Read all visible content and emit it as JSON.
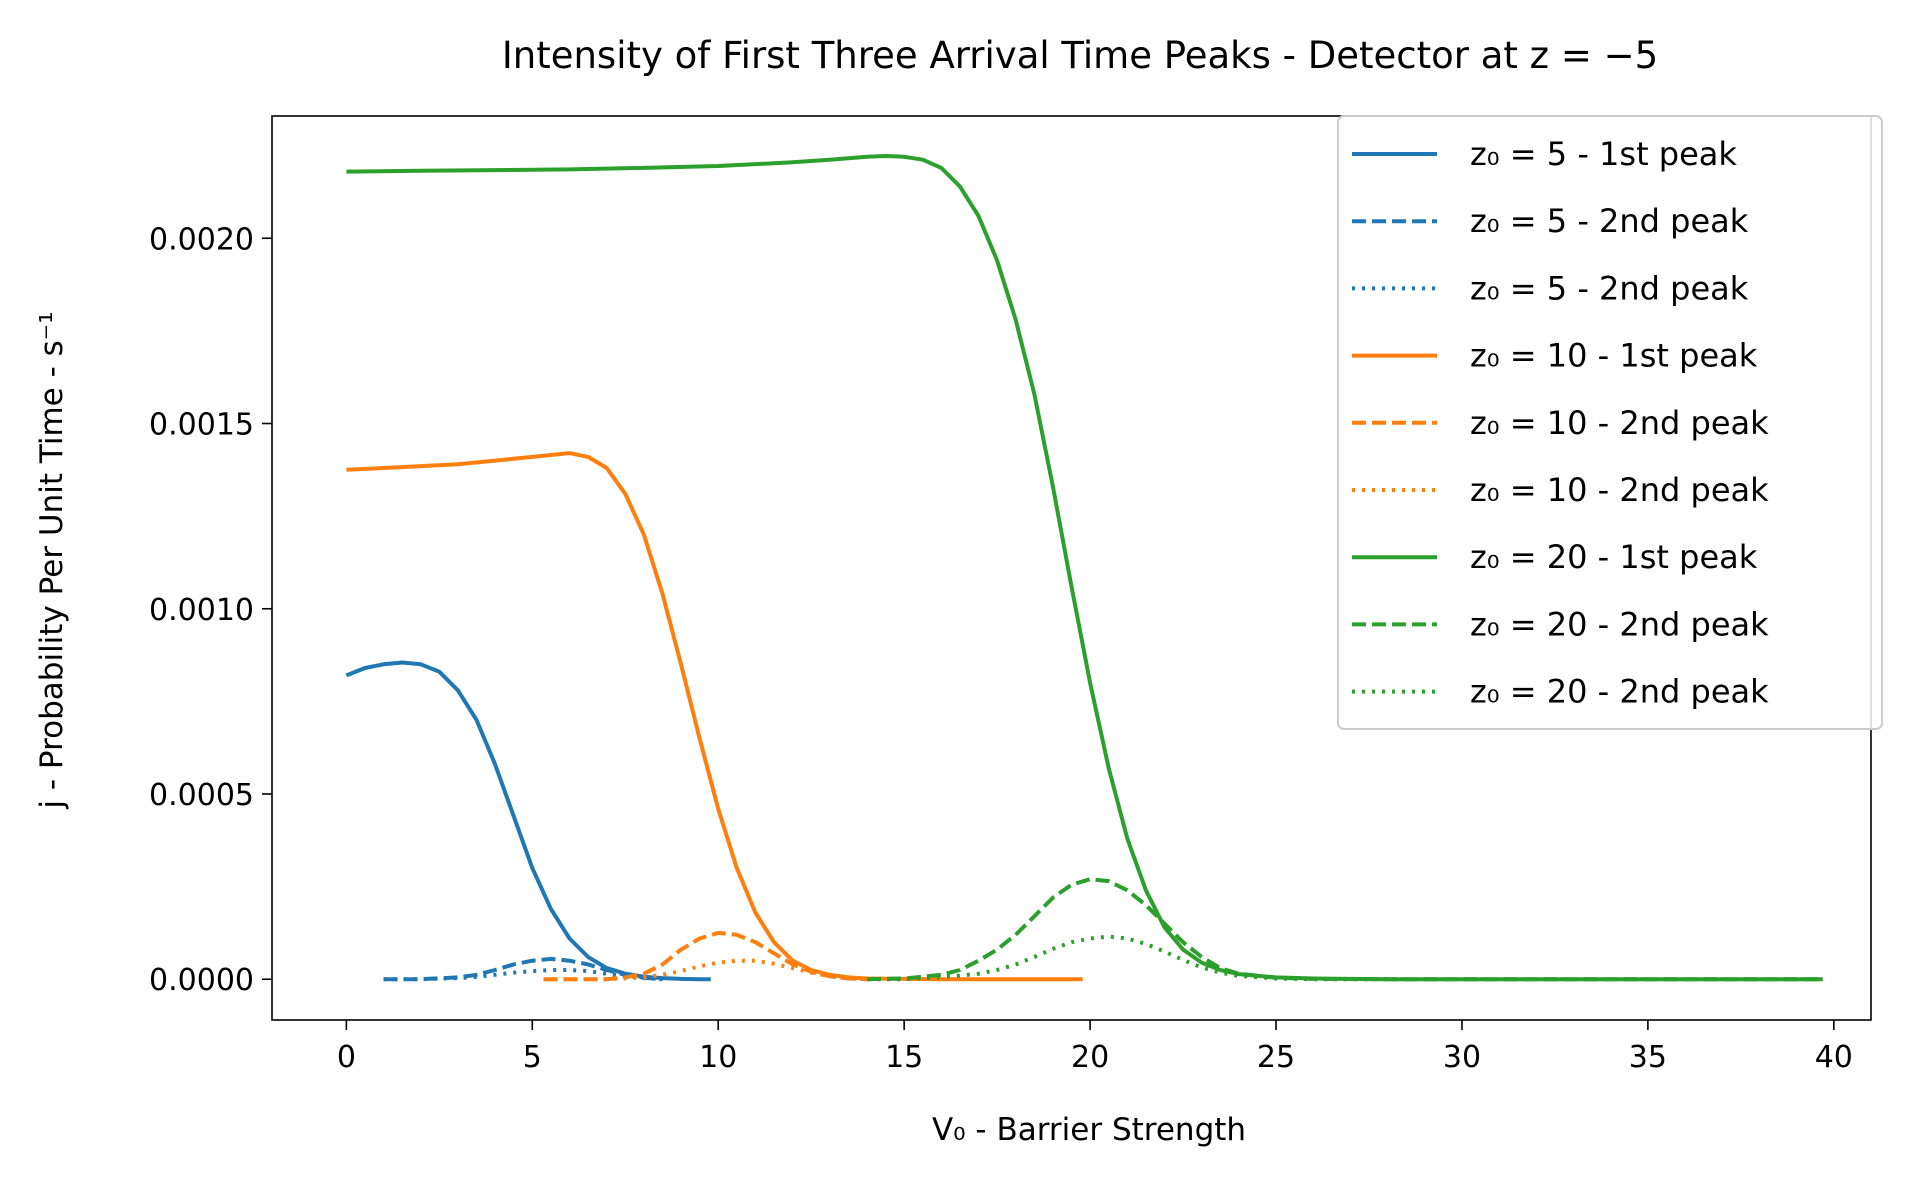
{
  "chart_data": {
    "type": "line",
    "title": "Intensity of First Three Arrival Time Peaks - Detector at z = −5",
    "xlabel": "V₀ - Barrier Strength",
    "ylabel": "j - Probability Per Unit Time - s⁻¹",
    "xlim": [
      -2,
      41
    ],
    "ylim": [
      -0.00011,
      0.00233
    ],
    "xticks": [
      0,
      5,
      10,
      15,
      20,
      25,
      30,
      35,
      40
    ],
    "yticks": [
      0.0,
      0.0005,
      0.001,
      0.0015,
      0.002
    ],
    "ytick_labels": [
      "0.0000",
      "0.0005",
      "0.0010",
      "0.0015",
      "0.0020"
    ],
    "grid": false,
    "legend_position": "upper-right",
    "colors": {
      "z5": "#1f77b4",
      "z10": "#ff7f0e",
      "z20": "#2ca02c"
    },
    "series": [
      {
        "name": "z₀ = 5 - 1st peak",
        "color": "#1f77b4",
        "style": "solid",
        "x": [
          0,
          0.5,
          1,
          1.5,
          2,
          2.5,
          3,
          3.5,
          4,
          4.5,
          5,
          5.5,
          6,
          6.5,
          7,
          7.5,
          8,
          8.5,
          9,
          9.5,
          9.8
        ],
        "y": [
          0.00082,
          0.00084,
          0.00085,
          0.000855,
          0.00085,
          0.00083,
          0.00078,
          0.0007,
          0.00058,
          0.00044,
          0.0003,
          0.00019,
          0.00011,
          6e-05,
          3e-05,
          1.5e-05,
          7e-06,
          3e-06,
          1e-06,
          0.0,
          0.0
        ]
      },
      {
        "name": "z₀ = 5 - 2nd peak",
        "color": "#1f77b4",
        "style": "dashed",
        "x": [
          1,
          2,
          3,
          3.5,
          4,
          4.5,
          5,
          5.5,
          6,
          6.5,
          7,
          7.5,
          8,
          8.5
        ],
        "y": [
          0.0,
          0.0,
          5e-06,
          1.2e-05,
          2.5e-05,
          4e-05,
          5e-05,
          5.5e-05,
          5e-05,
          4e-05,
          2.5e-05,
          1.2e-05,
          4e-06,
          0.0
        ]
      },
      {
        "name": "z₀ = 5 - 2nd peak",
        "color": "#1f77b4",
        "style": "dotted",
        "x": [
          1,
          2,
          3,
          3.5,
          4,
          4.5,
          5,
          5.5,
          6,
          6.5,
          7,
          7.5,
          8,
          8.5
        ],
        "y": [
          0.0,
          0.0,
          3e-06,
          6e-06,
          1.2e-05,
          1.8e-05,
          2.2e-05,
          2.5e-05,
          2.5e-05,
          2.2e-05,
          1.5e-05,
          8e-06,
          3e-06,
          0.0
        ]
      },
      {
        "name": "z₀ = 10 - 1st peak",
        "color": "#ff7f0e",
        "style": "solid",
        "x": [
          0,
          1,
          2,
          3,
          4,
          5,
          5.5,
          6,
          6.5,
          7,
          7.5,
          8,
          8.5,
          9,
          9.5,
          10,
          10.5,
          11,
          11.5,
          12,
          12.5,
          13,
          13.5,
          14,
          15,
          16,
          17,
          18,
          19,
          19.8
        ],
        "y": [
          0.001375,
          0.00138,
          0.001385,
          0.00139,
          0.0014,
          0.00141,
          0.001415,
          0.00142,
          0.00141,
          0.00138,
          0.00131,
          0.0012,
          0.00104,
          0.00085,
          0.00065,
          0.00046,
          0.0003,
          0.00018,
          0.0001,
          5e-05,
          2.5e-05,
          1.2e-05,
          5e-06,
          2e-06,
          1e-06,
          0.0,
          0.0,
          0.0,
          0.0,
          0.0
        ]
      },
      {
        "name": "z₀ = 10 - 2nd peak",
        "color": "#ff7f0e",
        "style": "dashed",
        "x": [
          5.3,
          6,
          7,
          7.5,
          8,
          8.5,
          9,
          9.5,
          10,
          10.5,
          11,
          11.5,
          12,
          12.5,
          13,
          13.5,
          14
        ],
        "y": [
          0.0,
          0.0,
          0.0,
          5e-06,
          1.5e-05,
          4e-05,
          8e-05,
          0.00011,
          0.000125,
          0.00012,
          0.0001,
          7e-05,
          4e-05,
          2e-05,
          8e-06,
          2e-06,
          0.0
        ]
      },
      {
        "name": "z₀ = 10 - 2nd peak",
        "color": "#ff7f0e",
        "style": "dotted",
        "x": [
          5.3,
          6,
          7,
          8,
          8.5,
          9,
          9.5,
          10,
          10.5,
          11,
          11.5,
          12,
          12.5,
          13,
          13.5,
          14
        ],
        "y": [
          0.0,
          0.0,
          0.0,
          5e-06,
          1.2e-05,
          2.2e-05,
          3.5e-05,
          4.5e-05,
          5e-05,
          5e-05,
          4.2e-05,
          3e-05,
          1.8e-05,
          8e-06,
          3e-06,
          0.0
        ]
      },
      {
        "name": "z₀ = 20 - 1st peak",
        "color": "#2ca02c",
        "style": "solid",
        "x": [
          0,
          2,
          4,
          6,
          8,
          10,
          12,
          13,
          14,
          14.5,
          15,
          15.5,
          16,
          16.5,
          17,
          17.5,
          18,
          18.5,
          19,
          19.5,
          20,
          20.5,
          21,
          21.5,
          22,
          22.5,
          23,
          23.5,
          24,
          25,
          26,
          28,
          30,
          35,
          39.7
        ],
        "y": [
          0.00218,
          0.002182,
          0.002184,
          0.002186,
          0.00219,
          0.002195,
          0.002205,
          0.002212,
          0.00222,
          0.002222,
          0.00222,
          0.002212,
          0.00219,
          0.00214,
          0.00206,
          0.00194,
          0.00178,
          0.00158,
          0.00133,
          0.00106,
          0.0008,
          0.00057,
          0.00038,
          0.00024,
          0.00014,
          8e-05,
          4.5e-05,
          2.5e-05,
          1.4e-05,
          5e-06,
          2e-06,
          0.0,
          0.0,
          0.0,
          0.0
        ]
      },
      {
        "name": "z₀ = 20 - 2nd peak",
        "color": "#2ca02c",
        "style": "dashed",
        "x": [
          14,
          15,
          16,
          16.5,
          17,
          17.5,
          18,
          18.5,
          19,
          19.5,
          20,
          20.5,
          21,
          21.5,
          22,
          22.5,
          23,
          23.5,
          24,
          25,
          26,
          28,
          30,
          35,
          39.7
        ],
        "y": [
          0.0,
          2e-06,
          1.2e-05,
          2.5e-05,
          5e-05,
          8e-05,
          0.00012,
          0.00017,
          0.00022,
          0.000255,
          0.00027,
          0.000265,
          0.00024,
          0.0002,
          0.00015,
          0.0001,
          6e-05,
          3e-05,
          1.5e-05,
          4e-06,
          1e-06,
          0.0,
          0.0,
          0.0,
          0.0
        ]
      },
      {
        "name": "z₀ = 20 - 2nd peak",
        "color": "#2ca02c",
        "style": "dotted",
        "x": [
          14,
          15,
          16,
          17,
          17.5,
          18,
          18.5,
          19,
          19.5,
          20,
          20.5,
          21,
          21.5,
          22,
          22.5,
          23,
          23.5,
          24,
          25,
          26,
          28,
          30,
          35,
          39.7
        ],
        "y": [
          0.0,
          0.0,
          5e-06,
          1.5e-05,
          2.5e-05,
          4e-05,
          6e-05,
          8.2e-05,
          0.0001,
          0.00011,
          0.000115,
          0.00011,
          9.5e-05,
          7.5e-05,
          5.2e-05,
          3.2e-05,
          1.8e-05,
          9e-06,
          2e-06,
          0.0,
          0.0,
          0.0,
          0.0,
          0.0
        ]
      }
    ]
  }
}
